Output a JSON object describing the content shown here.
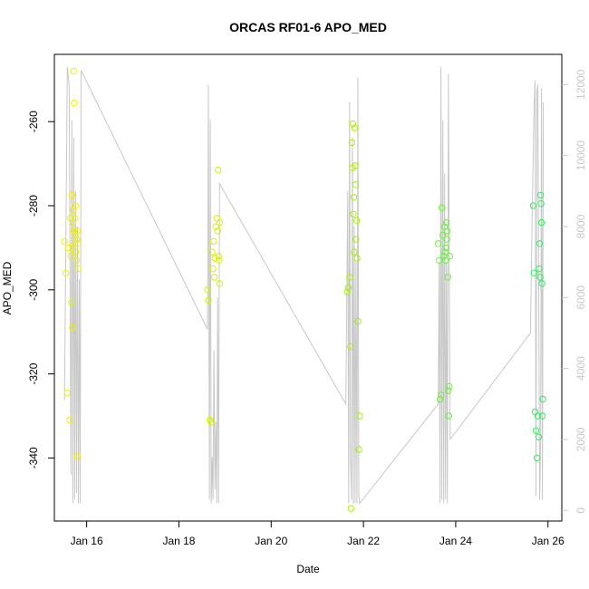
{
  "chart_data": {
    "type": "scatter",
    "title": "ORCAS RF01-6 APO_MED",
    "xlabel": "Date",
    "ylabel": "APO_MED",
    "x_axis": {
      "range_days": [
        15.3,
        26.3
      ],
      "ticks": [
        {
          "value": 16,
          "label": "Jan 16"
        },
        {
          "value": 18,
          "label": "Jan 18"
        },
        {
          "value": 20,
          "label": "Jan 20"
        },
        {
          "value": 22,
          "label": "Jan 22"
        },
        {
          "value": 24,
          "label": "Jan 24"
        },
        {
          "value": 26,
          "label": "Jan 26"
        }
      ]
    },
    "y_left": {
      "range": [
        -355,
        -244
      ],
      "ticks": [
        -340,
        -320,
        -300,
        -280,
        -260
      ]
    },
    "y_right": {
      "range": [
        -300,
        12850
      ],
      "ticks": [
        0,
        2000,
        4000,
        6000,
        8000,
        10000,
        12000
      ],
      "color": "#c8c8c8"
    },
    "grid": false,
    "series": [
      {
        "kind": "points",
        "axis": "left",
        "marker": "open-circle",
        "flights": [
          {
            "color": "#f0f000",
            "points": [
              [
                15.52,
                -288.5
              ],
              [
                15.55,
                -296
              ],
              [
                15.58,
                -324.5
              ],
              [
                15.6,
                -290
              ],
              [
                15.63,
                -331
              ],
              [
                15.65,
                -283
              ],
              [
                15.66,
                -292
              ],
              [
                15.67,
                -303
              ],
              [
                15.68,
                -277.5
              ],
              [
                15.69,
                -309
              ],
              [
                15.7,
                -284
              ],
              [
                15.71,
                -281
              ],
              [
                15.72,
                -286
              ],
              [
                15.72,
                -248
              ],
              [
                15.73,
                -255.5
              ],
              [
                15.74,
                -289
              ],
              [
                15.75,
                -287
              ],
              [
                15.76,
                -280
              ],
              [
                15.77,
                -291
              ],
              [
                15.78,
                -293
              ],
              [
                15.79,
                -288
              ],
              [
                15.8,
                -339.5
              ],
              [
                15.81,
                -295
              ],
              [
                15.82,
                -289
              ],
              [
                15.8,
                -286
              ],
              [
                15.75,
                -283
              ],
              [
                15.7,
                -290
              ]
            ]
          },
          {
            "color": "#d8f000",
            "points": [
              [
                18.62,
                -300
              ],
              [
                18.64,
                -302.5
              ],
              [
                18.67,
                -331
              ],
              [
                18.7,
                -331.5
              ],
              [
                18.72,
                -291
              ],
              [
                18.74,
                -295
              ],
              [
                18.75,
                -288.5
              ],
              [
                18.77,
                -297
              ],
              [
                18.78,
                -292.5
              ],
              [
                18.8,
                -285
              ],
              [
                18.82,
                -283
              ],
              [
                18.84,
                -286
              ],
              [
                18.85,
                -271.5
              ],
              [
                18.86,
                -292
              ],
              [
                18.87,
                -293
              ],
              [
                18.88,
                -298.5
              ],
              [
                18.88,
                -284
              ]
            ]
          },
          {
            "color": "#a8f000",
            "points": [
              [
                21.65,
                -300.5
              ],
              [
                21.67,
                -299.5
              ],
              [
                21.7,
                -297
              ],
              [
                21.72,
                -313.5
              ],
              [
                21.73,
                -352
              ],
              [
                21.75,
                -265
              ],
              [
                21.76,
                -271
              ],
              [
                21.77,
                -260.5
              ],
              [
                21.78,
                -282
              ],
              [
                21.79,
                -278
              ],
              [
                21.8,
                -291
              ],
              [
                21.81,
                -261.5
              ],
              [
                21.82,
                -270.5
              ],
              [
                21.83,
                -275
              ],
              [
                21.84,
                -288
              ],
              [
                21.85,
                -283.5
              ],
              [
                21.86,
                -292.5
              ],
              [
                21.88,
                -307.5
              ],
              [
                21.9,
                -338
              ],
              [
                21.92,
                -330
              ]
            ]
          },
          {
            "color": "#70f040",
            "points": [
              [
                23.62,
                -289
              ],
              [
                23.64,
                -293
              ],
              [
                23.66,
                -326
              ],
              [
                23.68,
                -325
              ],
              [
                23.7,
                -280.5
              ],
              [
                23.72,
                -287
              ],
              [
                23.74,
                -292
              ],
              [
                23.76,
                -285
              ],
              [
                23.77,
                -291
              ],
              [
                23.78,
                -293
              ],
              [
                23.79,
                -290
              ],
              [
                23.8,
                -284
              ],
              [
                23.81,
                -288
              ],
              [
                23.82,
                -286
              ],
              [
                23.83,
                -297
              ],
              [
                23.84,
                -324
              ],
              [
                23.85,
                -330
              ],
              [
                23.86,
                -323
              ],
              [
                23.87,
                -292
              ]
            ]
          },
          {
            "color": "#30f060",
            "points": [
              [
                25.68,
                -280
              ],
              [
                25.7,
                -296
              ],
              [
                25.72,
                -329
              ],
              [
                25.74,
                -333.5
              ],
              [
                25.76,
                -340
              ],
              [
                25.78,
                -330
              ],
              [
                25.8,
                -335
              ],
              [
                25.81,
                -295
              ],
              [
                25.82,
                -289
              ],
              [
                25.83,
                -297
              ],
              [
                25.84,
                -277.5
              ],
              [
                25.85,
                -279.5
              ],
              [
                25.86,
                -284
              ],
              [
                25.87,
                -298.5
              ],
              [
                25.88,
                -330
              ],
              [
                25.89,
                -326
              ]
            ]
          }
        ]
      },
      {
        "kind": "line",
        "axis": "right",
        "color": "#c8c8c8",
        "x": [
          15.52,
          15.58,
          15.62,
          15.66,
          15.68,
          15.7,
          15.72,
          15.74,
          15.76,
          15.78,
          15.8,
          15.82,
          15.84,
          15.86,
          15.88,
          18.62,
          18.64,
          18.66,
          18.68,
          18.7,
          18.72,
          18.74,
          18.76,
          18.78,
          18.8,
          18.82,
          18.84,
          18.86,
          18.88,
          21.62,
          21.66,
          21.68,
          21.7,
          21.72,
          21.74,
          21.76,
          21.78,
          21.8,
          21.82,
          21.84,
          21.86,
          21.88,
          21.9,
          21.92,
          23.62,
          23.64,
          23.66,
          23.68,
          23.7,
          23.72,
          23.74,
          23.76,
          23.78,
          23.8,
          23.82,
          23.84,
          23.86,
          23.88,
          25.62,
          25.66,
          25.7,
          25.72,
          25.74,
          25.76,
          25.78,
          25.8,
          25.82,
          25.84,
          25.86,
          25.88,
          25.9
        ],
        "values": [
          3100,
          12500,
          12000,
          1000,
          11000,
          200,
          10500,
          300,
          9000,
          500,
          8000,
          200,
          6500,
          200,
          12400,
          5100,
          12000,
          300,
          11000,
          200,
          1500,
          300,
          4500,
          600,
          2500,
          200,
          6000,
          200,
          9200,
          3000,
          9000,
          200,
          11500,
          1500,
          300,
          10500,
          200,
          8000,
          200,
          7000,
          200,
          12200,
          400,
          200,
          3000,
          7000,
          200,
          12500,
          300,
          11000,
          200,
          9500,
          300,
          7000,
          200,
          12300,
          7000,
          2000,
          5000,
          8500,
          11500,
          12100,
          400,
          11800,
          12000,
          6000,
          300,
          2000,
          11900,
          300,
          11500
        ]
      }
    ]
  }
}
